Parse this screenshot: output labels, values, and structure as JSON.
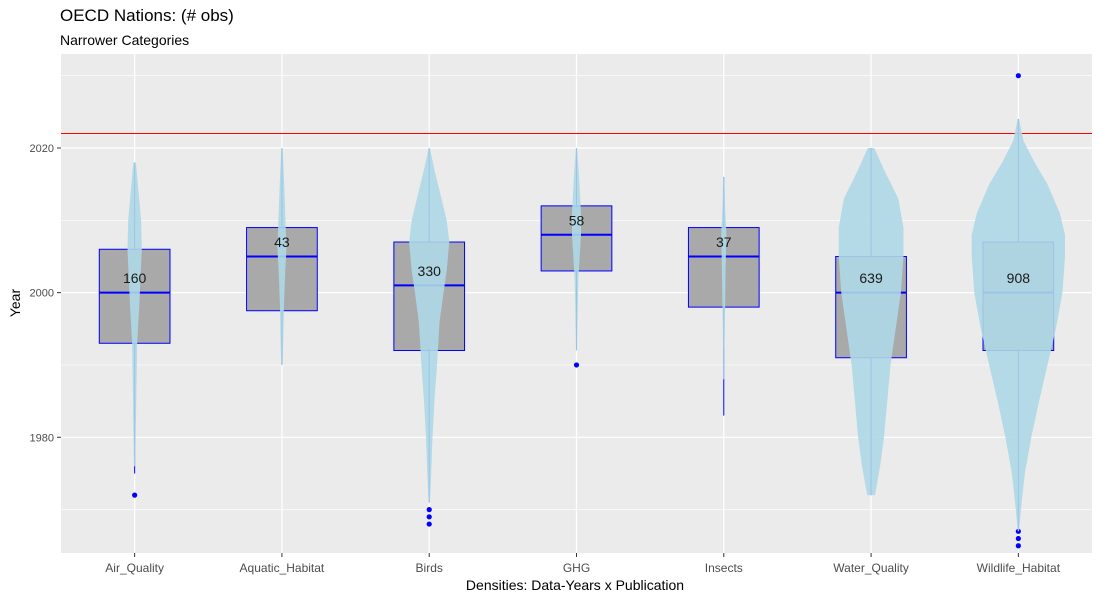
{
  "chart_data": {
    "type": "violin-box",
    "title": "OECD Nations: (# obs)",
    "subtitle": "Narrower Categories",
    "xlabel": "Densities: Data-Years x Publication",
    "ylabel": "Year",
    "ylim": [
      1964,
      2033
    ],
    "y_ticks": [
      1980,
      2000,
      2020
    ],
    "reference_line": {
      "y": 2022,
      "color": "#ff0000"
    },
    "grid": true,
    "colors": {
      "panel": "#ebebeb",
      "grid": "#ffffff",
      "box_fill": "#a9a9a9",
      "box_line": "#0000ff",
      "violin": "#add8e6",
      "outlier": "#0000ff"
    },
    "categories": [
      "Air_Quality",
      "Aquatic_Habitat",
      "Birds",
      "GHG",
      "Insects",
      "Water_Quality",
      "Wildlife_Habitat"
    ],
    "boxes": [
      {
        "category": "Air_Quality",
        "count_label": "160",
        "label_y": 2002,
        "q1": 1993,
        "median": 2000,
        "q3": 2006,
        "whisker_low": 1975,
        "whisker_high": 2018,
        "outliers": [
          1972
        ],
        "violin": [
          [
            2018,
            0.02
          ],
          [
            2015,
            0.05
          ],
          [
            2010,
            0.1
          ],
          [
            2006,
            0.11
          ],
          [
            2002,
            0.09
          ],
          [
            1998,
            0.07
          ],
          [
            1993,
            0.04
          ],
          [
            1988,
            0.03
          ],
          [
            1982,
            0.02
          ],
          [
            1976,
            0.01
          ]
        ]
      },
      {
        "category": "Aquatic_Habitat",
        "count_label": "43",
        "label_y": 2007,
        "q1": 1997.5,
        "median": 2005,
        "q3": 2009,
        "whisker_low": 1990,
        "whisker_high": 2020,
        "outliers": [],
        "violin": [
          [
            2020,
            0.01
          ],
          [
            2016,
            0.03
          ],
          [
            2011,
            0.05
          ],
          [
            2006,
            0.07
          ],
          [
            2003,
            0.05
          ],
          [
            1998,
            0.03
          ],
          [
            1993,
            0.02
          ],
          [
            1990,
            0.01
          ]
        ]
      },
      {
        "category": "Birds",
        "count_label": "330",
        "label_y": 2003,
        "q1": 1992,
        "median": 2001,
        "q3": 2007,
        "whisker_low": 1971,
        "whisker_high": 2020,
        "outliers": [
          1968,
          1969,
          1970
        ],
        "violin": [
          [
            2020,
            0.01
          ],
          [
            2017,
            0.08
          ],
          [
            2013,
            0.19
          ],
          [
            2010,
            0.27
          ],
          [
            2007,
            0.31
          ],
          [
            2003,
            0.27
          ],
          [
            2000,
            0.22
          ],
          [
            1996,
            0.16
          ],
          [
            1990,
            0.12
          ],
          [
            1985,
            0.08
          ],
          [
            1980,
            0.05
          ],
          [
            1975,
            0.03
          ],
          [
            1971,
            0.01
          ]
        ]
      },
      {
        "category": "GHG",
        "count_label": "58",
        "label_y": 2010,
        "q1": 2003,
        "median": 2008,
        "q3": 2012,
        "whisker_low": 1992,
        "whisker_high": 2020,
        "outliers": [
          1990
        ],
        "violin": [
          [
            2020,
            0.01
          ],
          [
            2016,
            0.04
          ],
          [
            2011,
            0.07
          ],
          [
            2008,
            0.07
          ],
          [
            2005,
            0.05
          ],
          [
            2002,
            0.03
          ],
          [
            1998,
            0.02
          ],
          [
            1992,
            0.01
          ]
        ]
      },
      {
        "category": "Insects",
        "count_label": "37",
        "label_y": 2007,
        "q1": 1998,
        "median": 2005,
        "q3": 2009,
        "whisker_low": 1983,
        "whisker_high": 2016,
        "outliers": [],
        "violin": [
          [
            2016,
            0.01
          ],
          [
            2012,
            0.02
          ],
          [
            2008,
            0.04
          ],
          [
            2004,
            0.03
          ],
          [
            1998,
            0.02
          ],
          [
            1992,
            0.01
          ],
          [
            1988,
            0.01
          ]
        ]
      },
      {
        "category": "Water_Quality",
        "count_label": "639",
        "label_y": 2002,
        "q1": 1991,
        "median": 2000,
        "q3": 2005,
        "whisker_low": 1972,
        "whisker_high": 2020,
        "outliers": [],
        "violin": [
          [
            2020,
            0.05
          ],
          [
            2017,
            0.2
          ],
          [
            2013,
            0.42
          ],
          [
            2009,
            0.5
          ],
          [
            2005,
            0.5
          ],
          [
            2000,
            0.46
          ],
          [
            1995,
            0.38
          ],
          [
            1990,
            0.3
          ],
          [
            1985,
            0.25
          ],
          [
            1980,
            0.2
          ],
          [
            1976,
            0.14
          ],
          [
            1972,
            0.06
          ]
        ]
      },
      {
        "category": "Wildlife_Habitat",
        "count_label": "908",
        "label_y": 2002,
        "q1": 1992,
        "median": 2000,
        "q3": 2007,
        "whisker_low": 1967,
        "whisker_high": 2024,
        "outliers": [
          2030,
          1965,
          1966,
          1967
        ],
        "violin": [
          [
            2024,
            0.01
          ],
          [
            2021,
            0.08
          ],
          [
            2018,
            0.25
          ],
          [
            2015,
            0.45
          ],
          [
            2011,
            0.64
          ],
          [
            2008,
            0.72
          ],
          [
            2005,
            0.72
          ],
          [
            2000,
            0.68
          ],
          [
            1995,
            0.58
          ],
          [
            1990,
            0.45
          ],
          [
            1985,
            0.32
          ],
          [
            1980,
            0.2
          ],
          [
            1975,
            0.1
          ],
          [
            1970,
            0.04
          ],
          [
            1967,
            0.01
          ]
        ]
      }
    ]
  }
}
